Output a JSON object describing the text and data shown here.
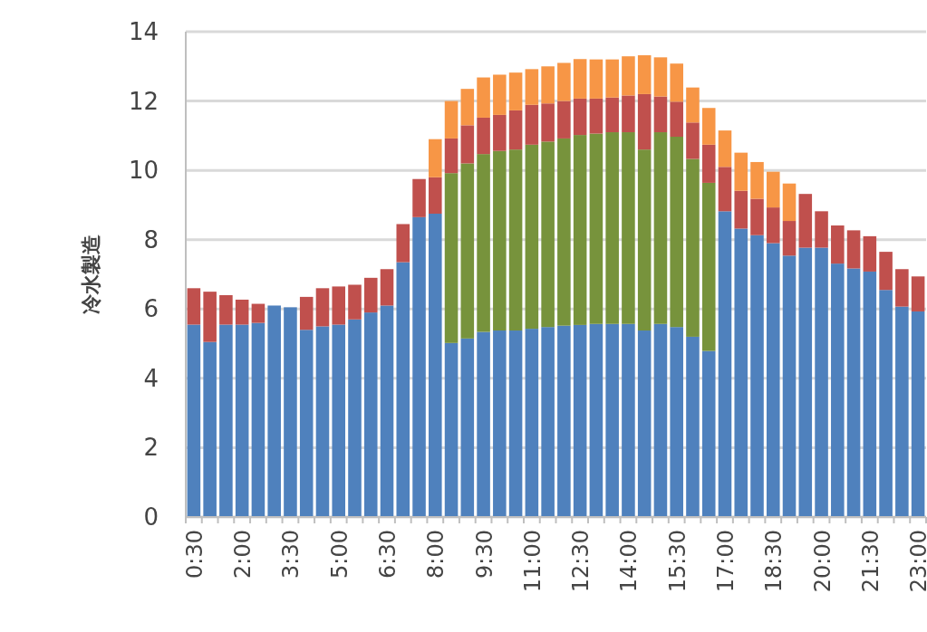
{
  "chart_data": {
    "type": "bar",
    "stacked": true,
    "ylabel": "冷水製造",
    "ylim": [
      0,
      14
    ],
    "yticks": [
      0,
      2,
      4,
      6,
      8,
      10,
      12,
      14
    ],
    "grid": "y",
    "categories": [
      "0:30",
      null,
      null,
      "2:00",
      null,
      null,
      "3:30",
      null,
      null,
      "5:00",
      null,
      null,
      "6:30",
      null,
      null,
      "8:00",
      null,
      null,
      "9:30",
      null,
      null,
      "11:00",
      null,
      null,
      "12:30",
      null,
      null,
      "14:00",
      null,
      null,
      "15:30",
      null,
      null,
      "17:00",
      null,
      null,
      "18:30",
      null,
      null,
      "20:00",
      null,
      null,
      "21:30",
      null,
      null,
      "23:00"
    ],
    "series": [
      {
        "color": "#4f81bd",
        "values": [
          5.55,
          5.05,
          5.55,
          5.55,
          5.6,
          6.1,
          6.05,
          5.4,
          5.5,
          5.55,
          5.7,
          5.9,
          6.1,
          7.35,
          8.65,
          8.75,
          5.02,
          5.15,
          5.34,
          5.38,
          5.38,
          5.43,
          5.48,
          5.52,
          5.54,
          5.57,
          5.57,
          5.57,
          5.38,
          5.57,
          5.48,
          5.2,
          4.79,
          8.82,
          8.32,
          8.13,
          7.9,
          7.54,
          7.77,
          7.77,
          7.31,
          7.17,
          7.08,
          6.55,
          6.07,
          5.93
        ]
      },
      {
        "color": "#77933c",
        "values": [
          0,
          0,
          0,
          0,
          0,
          0,
          0,
          0,
          0,
          0,
          0,
          0,
          0,
          0,
          0,
          0,
          4.9,
          5.05,
          5.13,
          5.18,
          5.22,
          5.31,
          5.35,
          5.4,
          5.48,
          5.49,
          5.53,
          5.53,
          5.22,
          5.53,
          5.49,
          5.13,
          4.85,
          0,
          0,
          0,
          0,
          0,
          0,
          0,
          0,
          0,
          0,
          0,
          0,
          0
        ]
      },
      {
        "color": "#c0504d",
        "values": [
          1.05,
          1.45,
          0.85,
          0.72,
          0.55,
          0,
          0,
          0.95,
          1.1,
          1.1,
          1.0,
          1.0,
          1.05,
          1.1,
          1.1,
          1.05,
          1.0,
          1.1,
          1.05,
          1.04,
          1.13,
          1.15,
          1.1,
          1.08,
          1.05,
          1.01,
          1.0,
          1.06,
          1.6,
          1.03,
          1.01,
          1.05,
          1.1,
          1.28,
          1.09,
          1.05,
          1.03,
          1.0,
          1.55,
          1.05,
          1.1,
          1.1,
          1.02,
          1.1,
          1.08,
          1.01
        ]
      },
      {
        "color": "#f79646",
        "values": [
          0,
          0,
          0,
          0,
          0,
          0,
          0,
          0,
          0,
          0,
          0,
          0,
          0,
          0,
          0,
          1.1,
          1.08,
          1.05,
          1.16,
          1.16,
          1.09,
          1.03,
          1.07,
          1.1,
          1.14,
          1.13,
          1.1,
          1.13,
          1.12,
          1.13,
          1.1,
          1.01,
          1.06,
          1.05,
          1.1,
          1.06,
          1.03,
          1.08,
          0,
          0,
          0,
          0,
          0,
          0,
          0,
          0
        ]
      }
    ]
  }
}
